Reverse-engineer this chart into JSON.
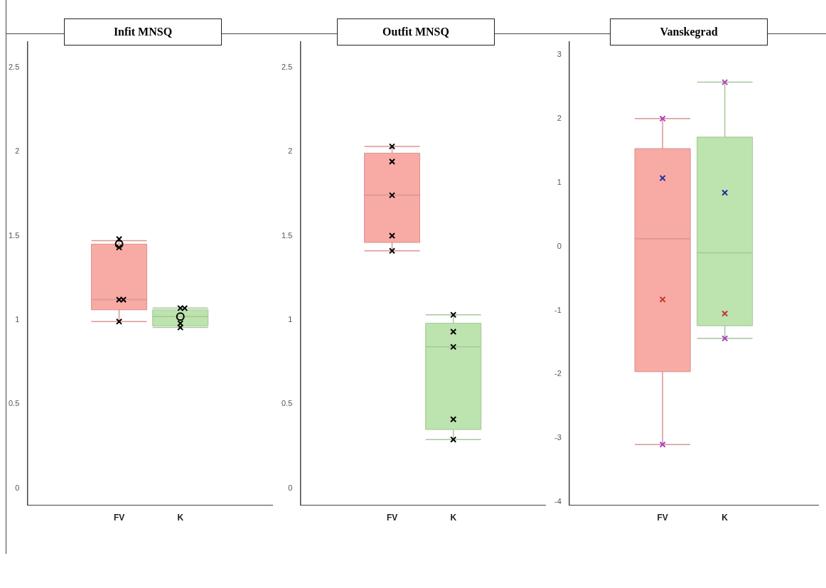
{
  "chart_data": [
    {
      "type": "box",
      "title": "Infit MNSQ",
      "categories": [
        "FV",
        "K"
      ],
      "colors": [
        "#f8aaa5",
        "#bde3ae"
      ],
      "boxes": [
        {
          "low": 0.99,
          "q1": 1.06,
          "median": 1.12,
          "q3": 1.45,
          "high": 1.47
        },
        {
          "low": 0.955,
          "q1": 0.965,
          "median": 1.02,
          "q3": 1.06,
          "high": 1.07
        }
      ],
      "series": [
        {
          "type": "scatter",
          "marker": "cross",
          "color": "#000000",
          "x": [
            "FV",
            "FV",
            "FV",
            "FV",
            "FV",
            "K",
            "K",
            "K",
            "K"
          ],
          "values": [
            1.48,
            1.43,
            1.12,
            1.12,
            0.99,
            1.07,
            1.07,
            0.98,
            0.955
          ]
        },
        {
          "type": "scatter",
          "marker": "circle",
          "color": "#000000",
          "x": [
            "FV",
            "K"
          ],
          "values": [
            1.45,
            1.02
          ]
        }
      ],
      "ylim": [
        -0.1,
        2.65
      ],
      "yticks": [
        0,
        0.5,
        1,
        1.5,
        2,
        2.5
      ],
      "grid": false,
      "legend": false
    },
    {
      "type": "box",
      "title": "Outfit MNSQ",
      "categories": [
        "FV",
        "K"
      ],
      "colors": [
        "#f8aaa5",
        "#bde3ae"
      ],
      "boxes": [
        {
          "low": 1.41,
          "q1": 1.46,
          "median": 1.74,
          "q3": 1.99,
          "high": 2.03
        },
        {
          "low": 0.29,
          "q1": 0.35,
          "median": 0.84,
          "q3": 0.98,
          "high": 1.03
        }
      ],
      "series": [
        {
          "type": "scatter",
          "marker": "cross",
          "color": "#000000",
          "x": [
            "FV",
            "FV",
            "FV",
            "FV",
            "FV",
            "K",
            "K",
            "K",
            "K",
            "K"
          ],
          "values": [
            2.03,
            1.94,
            1.74,
            1.5,
            1.41,
            1.03,
            0.93,
            0.84,
            0.41,
            0.29
          ]
        }
      ],
      "ylim": [
        -0.1,
        2.65
      ],
      "yticks": [
        0,
        0.5,
        1,
        1.5,
        2,
        2.5
      ],
      "grid": false,
      "legend": false
    },
    {
      "type": "box",
      "title": "Vanskegrad",
      "categories": [
        "FV",
        "K"
      ],
      "colors": [
        "#f8aaa5",
        "#bde3ae"
      ],
      "boxes": [
        {
          "low": -3.1,
          "q1": -1.96,
          "median": 0.12,
          "q3": 1.53,
          "high": 2.0
        },
        {
          "low": -1.44,
          "q1": -1.24,
          "median": -0.1,
          "q3": 1.71,
          "high": 2.57
        }
      ],
      "series": [
        {
          "type": "scatter",
          "marker": "cross",
          "color": "#b040c0",
          "x": [
            "FV",
            "FV",
            "K",
            "K"
          ],
          "values": [
            2.0,
            -3.1,
            2.57,
            -1.44
          ]
        },
        {
          "type": "scatter",
          "marker": "cross",
          "color": "#1f2f9f",
          "x": [
            "FV",
            "K"
          ],
          "values": [
            1.07,
            0.84
          ]
        },
        {
          "type": "scatter",
          "marker": "cross",
          "color": "#c0392b",
          "x": [
            "FV",
            "K"
          ],
          "values": [
            -0.83,
            -1.05
          ]
        }
      ],
      "ylim": [
        -4.05,
        3.2
      ],
      "yticks": [
        -4,
        -3,
        -2,
        -1,
        0,
        1,
        2,
        3
      ],
      "grid": false,
      "legend": false
    }
  ]
}
